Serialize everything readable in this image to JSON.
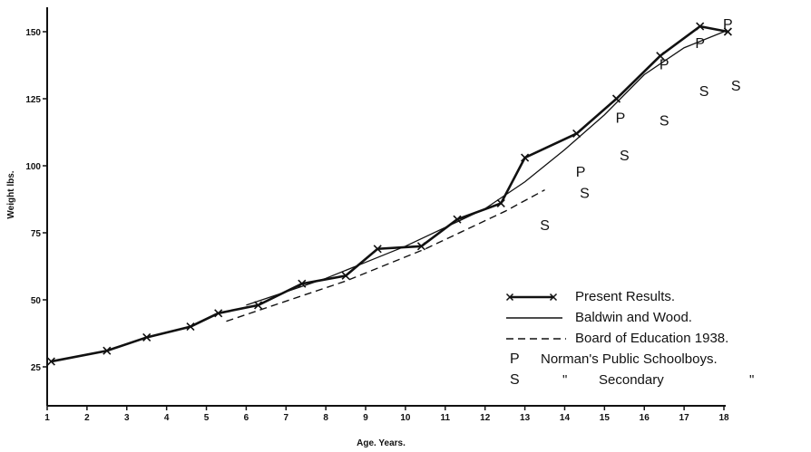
{
  "chart_data": {
    "type": "line",
    "xlabel": "Age. Years.",
    "ylabel": "Weight lbs.",
    "xlim": [
      1,
      18.3
    ],
    "ylim": [
      20,
      160
    ],
    "x_ticks": [
      "1",
      "2",
      "3",
      "4",
      "5",
      "6",
      "7",
      "8",
      "9",
      "10",
      "11",
      "12",
      "13",
      "14",
      "15",
      "16",
      "17",
      "18"
    ],
    "y_ticks": [
      "25",
      "50",
      "75",
      "100",
      "125",
      "150"
    ],
    "x_tick_values": [
      1,
      2,
      3,
      4,
      5,
      6,
      7,
      8,
      9,
      10,
      11,
      12,
      13,
      14,
      15,
      16,
      17,
      18
    ],
    "y_tick_values": [
      25,
      50,
      75,
      100,
      125,
      150
    ],
    "series": [
      {
        "name": "Present Results.",
        "style": "thick-line-with-x-markers",
        "x": [
          1.1,
          2.5,
          3.5,
          4.6,
          5.3,
          6.3,
          7.4,
          8.5,
          9.3,
          10.4,
          11.3,
          12.4,
          13.0,
          14.3,
          15.3,
          16.4,
          17.4,
          18.1
        ],
        "y": [
          27,
          31,
          36,
          40,
          45,
          48,
          56,
          59,
          69,
          70,
          80,
          86,
          103,
          112,
          125,
          141,
          152,
          150
        ]
      },
      {
        "name": "Baldwin and Wood.",
        "style": "thin-solid",
        "x": [
          6,
          7,
          8,
          9,
          10,
          11,
          12,
          13,
          14,
          15,
          16,
          17,
          18
        ],
        "y": [
          48,
          53,
          58,
          64,
          70,
          77,
          84,
          94,
          106,
          119,
          134,
          144,
          150
        ]
      },
      {
        "name": "Board of Education 1938.",
        "style": "dashed",
        "x": [
          5.5,
          6.5,
          7.5,
          8.5,
          9.5,
          10.5,
          11.5,
          12.5,
          13.5
        ],
        "y": [
          42,
          47,
          52,
          57,
          63,
          69,
          76,
          83,
          91
        ]
      }
    ],
    "point_sets": [
      {
        "marker": "P",
        "name": "Norman's Public Schoolboys.",
        "x": [
          14.4,
          15.4,
          16.5,
          17.4,
          18.1
        ],
        "y": [
          98,
          118,
          138,
          146,
          153
        ]
      },
      {
        "marker": "S",
        "name": "Secondary",
        "x": [
          13.5,
          14.5,
          15.5,
          16.5,
          17.5,
          18.3
        ],
        "y": [
          78,
          90,
          104,
          117,
          128,
          130
        ]
      }
    ],
    "legend": {
      "placement": "bottom-right",
      "items": [
        {
          "symbol": "x——x",
          "label": "Present Results."
        },
        {
          "symbol": "———",
          "label": "Baldwin and Wood."
        },
        {
          "symbol": "- - - -",
          "label": "Board of Education 1938."
        },
        {
          "symbol": "P",
          "label": "Norman's Public Schoolboys."
        },
        {
          "symbol": "S",
          "label": "Secondary",
          "ditto": "\""
        }
      ]
    }
  }
}
